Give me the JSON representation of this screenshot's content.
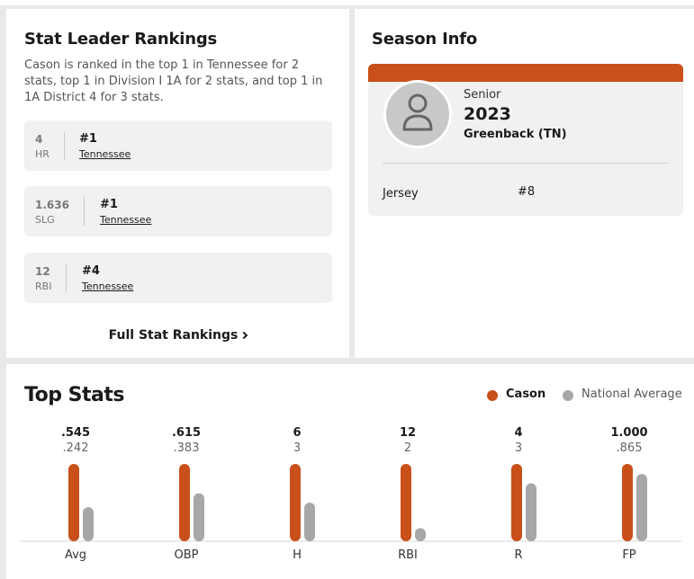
{
  "rankings": {
    "title": "Stat Leader Rankings",
    "description": "Cason is ranked in the top 1 in Tennessee for 2 stats, top 1 in Division I 1A for 2 stats, and top 1 in 1A District 4 for 3 stats.",
    "items": [
      {
        "value": "4",
        "abbr": "HR",
        "rank": "#1",
        "scope": "Tennessee"
      },
      {
        "value": "1.636",
        "abbr": "SLG",
        "rank": "#1",
        "scope": "Tennessee"
      },
      {
        "value": "12",
        "abbr": "RBI",
        "rank": "#4",
        "scope": "Tennessee"
      }
    ],
    "full_link_label": "Full Stat Rankings"
  },
  "season": {
    "title": "Season Info",
    "class_label": "Senior",
    "year": "2023",
    "school": "Greenback (TN)",
    "jersey_label": "Jersey",
    "jersey_value": "#8"
  },
  "top_stats": {
    "title": "Top Stats",
    "legend_player": "Cason",
    "legend_national": "National Average"
  },
  "colors": {
    "accent": "#c9501a",
    "national": "#a7a7a7"
  },
  "chart_data": {
    "type": "bar",
    "title": "Top Stats",
    "categories": [
      "Avg",
      "OBP",
      "H",
      "RBI",
      "R",
      "FP"
    ],
    "series": [
      {
        "name": "Cason",
        "labels": [
          ".545",
          ".615",
          "6",
          "12",
          "4",
          "1.000"
        ],
        "values": [
          0.545,
          0.615,
          6,
          12,
          4,
          1.0
        ]
      },
      {
        "name": "National Average",
        "labels": [
          ".242",
          ".383",
          "3",
          "2",
          "3",
          ".865"
        ],
        "values": [
          0.242,
          0.383,
          3,
          2,
          3,
          0.865
        ]
      }
    ],
    "relative_national_heights": [
      0.44,
      0.62,
      0.5,
      0.17,
      0.75,
      0.87
    ],
    "xlabel": "",
    "ylabel": "",
    "grid": false,
    "legend": "top-right"
  }
}
